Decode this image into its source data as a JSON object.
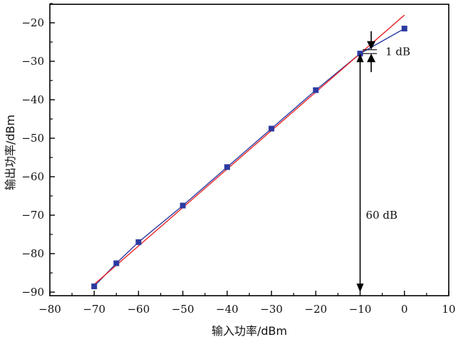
{
  "chart_data": {
    "type": "line",
    "xlabel": "输入功率/dBm",
    "ylabel": "输出功率/dBm",
    "xlim": [
      -80,
      10
    ],
    "ylim": [
      -90,
      -15
    ],
    "x_ticks": [
      -80,
      -70,
      -60,
      -50,
      -40,
      -30,
      -20,
      -10,
      0,
      10
    ],
    "y_ticks": [
      -90,
      -80,
      -70,
      -60,
      -50,
      -40,
      -30,
      -20
    ],
    "x_tick_labels": [
      "−80",
      "−70",
      "−60",
      "−50",
      "−40",
      "−30",
      "−20",
      "−10",
      "0",
      "10"
    ],
    "y_tick_labels": [
      "−90",
      "−80",
      "−70",
      "−60",
      "−50",
      "−40",
      "−30",
      "−20"
    ],
    "grid": false,
    "series": [
      {
        "marker": "square",
        "color": "#2b3aa0",
        "x": [
          -70,
          -65,
          -60,
          -50,
          -40,
          -30,
          -20,
          -10,
          0
        ],
        "y": [
          -88.5,
          -82.5,
          -77,
          -67.5,
          -57.5,
          -47.5,
          -37.5,
          -28,
          -21.5
        ]
      },
      {
        "color": "#e8262a",
        "style": "linear fit",
        "x": [
          -70,
          0
        ],
        "y": [
          -88,
          -18
        ]
      }
    ],
    "annotations": [
      {
        "text": "1 dB",
        "x": -7.5,
        "y_from": -28,
        "y_to": -27
      },
      {
        "text": "60 dB",
        "x": -10,
        "y_from": -90,
        "y_to": -28
      }
    ]
  }
}
